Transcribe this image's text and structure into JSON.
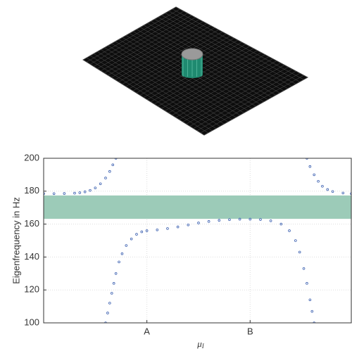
{
  "chart_data": {
    "type": "scatter",
    "xlabel": {
      "symbol": "μ",
      "subscript": "I"
    },
    "ylabel": "Eigenfrequency in Hz",
    "xlim": [
      0,
      2.98
    ],
    "ylim": [
      100,
      200
    ],
    "xticks": [
      {
        "value": 1,
        "label": "A"
      },
      {
        "value": 2,
        "label": "B"
      }
    ],
    "yticks": [
      100,
      120,
      140,
      160,
      180,
      200
    ],
    "grid": true,
    "band": {
      "range": [
        163.2,
        177.4
      ],
      "color": "#9ccbb8"
    },
    "series": [
      {
        "color": "#3a5fb0",
        "x": [
          0,
          0.1,
          0.2,
          0.3,
          0.35,
          0.4,
          0.45,
          0.5,
          0.55,
          0.6,
          0.64,
          0.67,
          0.7
        ],
        "values": [
          178.5,
          178.5,
          178.6,
          178.8,
          179.1,
          179.6,
          180.5,
          182,
          184.5,
          188,
          192,
          196,
          200
        ]
      },
      {
        "color": "#3a5fb0",
        "x": [
          0.6,
          0.62,
          0.64,
          0.66,
          0.68,
          0.7,
          0.73,
          0.76,
          0.8,
          0.85,
          0.9,
          0.95,
          1.0,
          1.1,
          1.2,
          1.3,
          1.4,
          1.5,
          1.6,
          1.7,
          1.8,
          1.9,
          2.0,
          2.1,
          2.2,
          2.3,
          2.38,
          2.44,
          2.48,
          2.52,
          2.55,
          2.58,
          2.6,
          2.62
        ],
        "values": [
          100,
          106,
          112,
          118,
          124,
          130,
          137,
          142,
          147,
          151,
          153.8,
          155.3,
          156,
          156.5,
          157.3,
          158.3,
          159.5,
          160.7,
          161.6,
          162.3,
          162.7,
          163,
          163,
          162.8,
          162,
          160,
          156,
          150,
          143,
          133,
          124,
          114,
          107,
          100
        ]
      },
      {
        "color": "#3a5fb0",
        "x": [
          2.55,
          2.58,
          2.62,
          2.66,
          2.7,
          2.75,
          2.8,
          2.9,
          2.98
        ],
        "values": [
          200,
          195,
          190,
          186,
          183,
          181,
          179.8,
          178.9,
          178.5
        ]
      }
    ]
  }
}
